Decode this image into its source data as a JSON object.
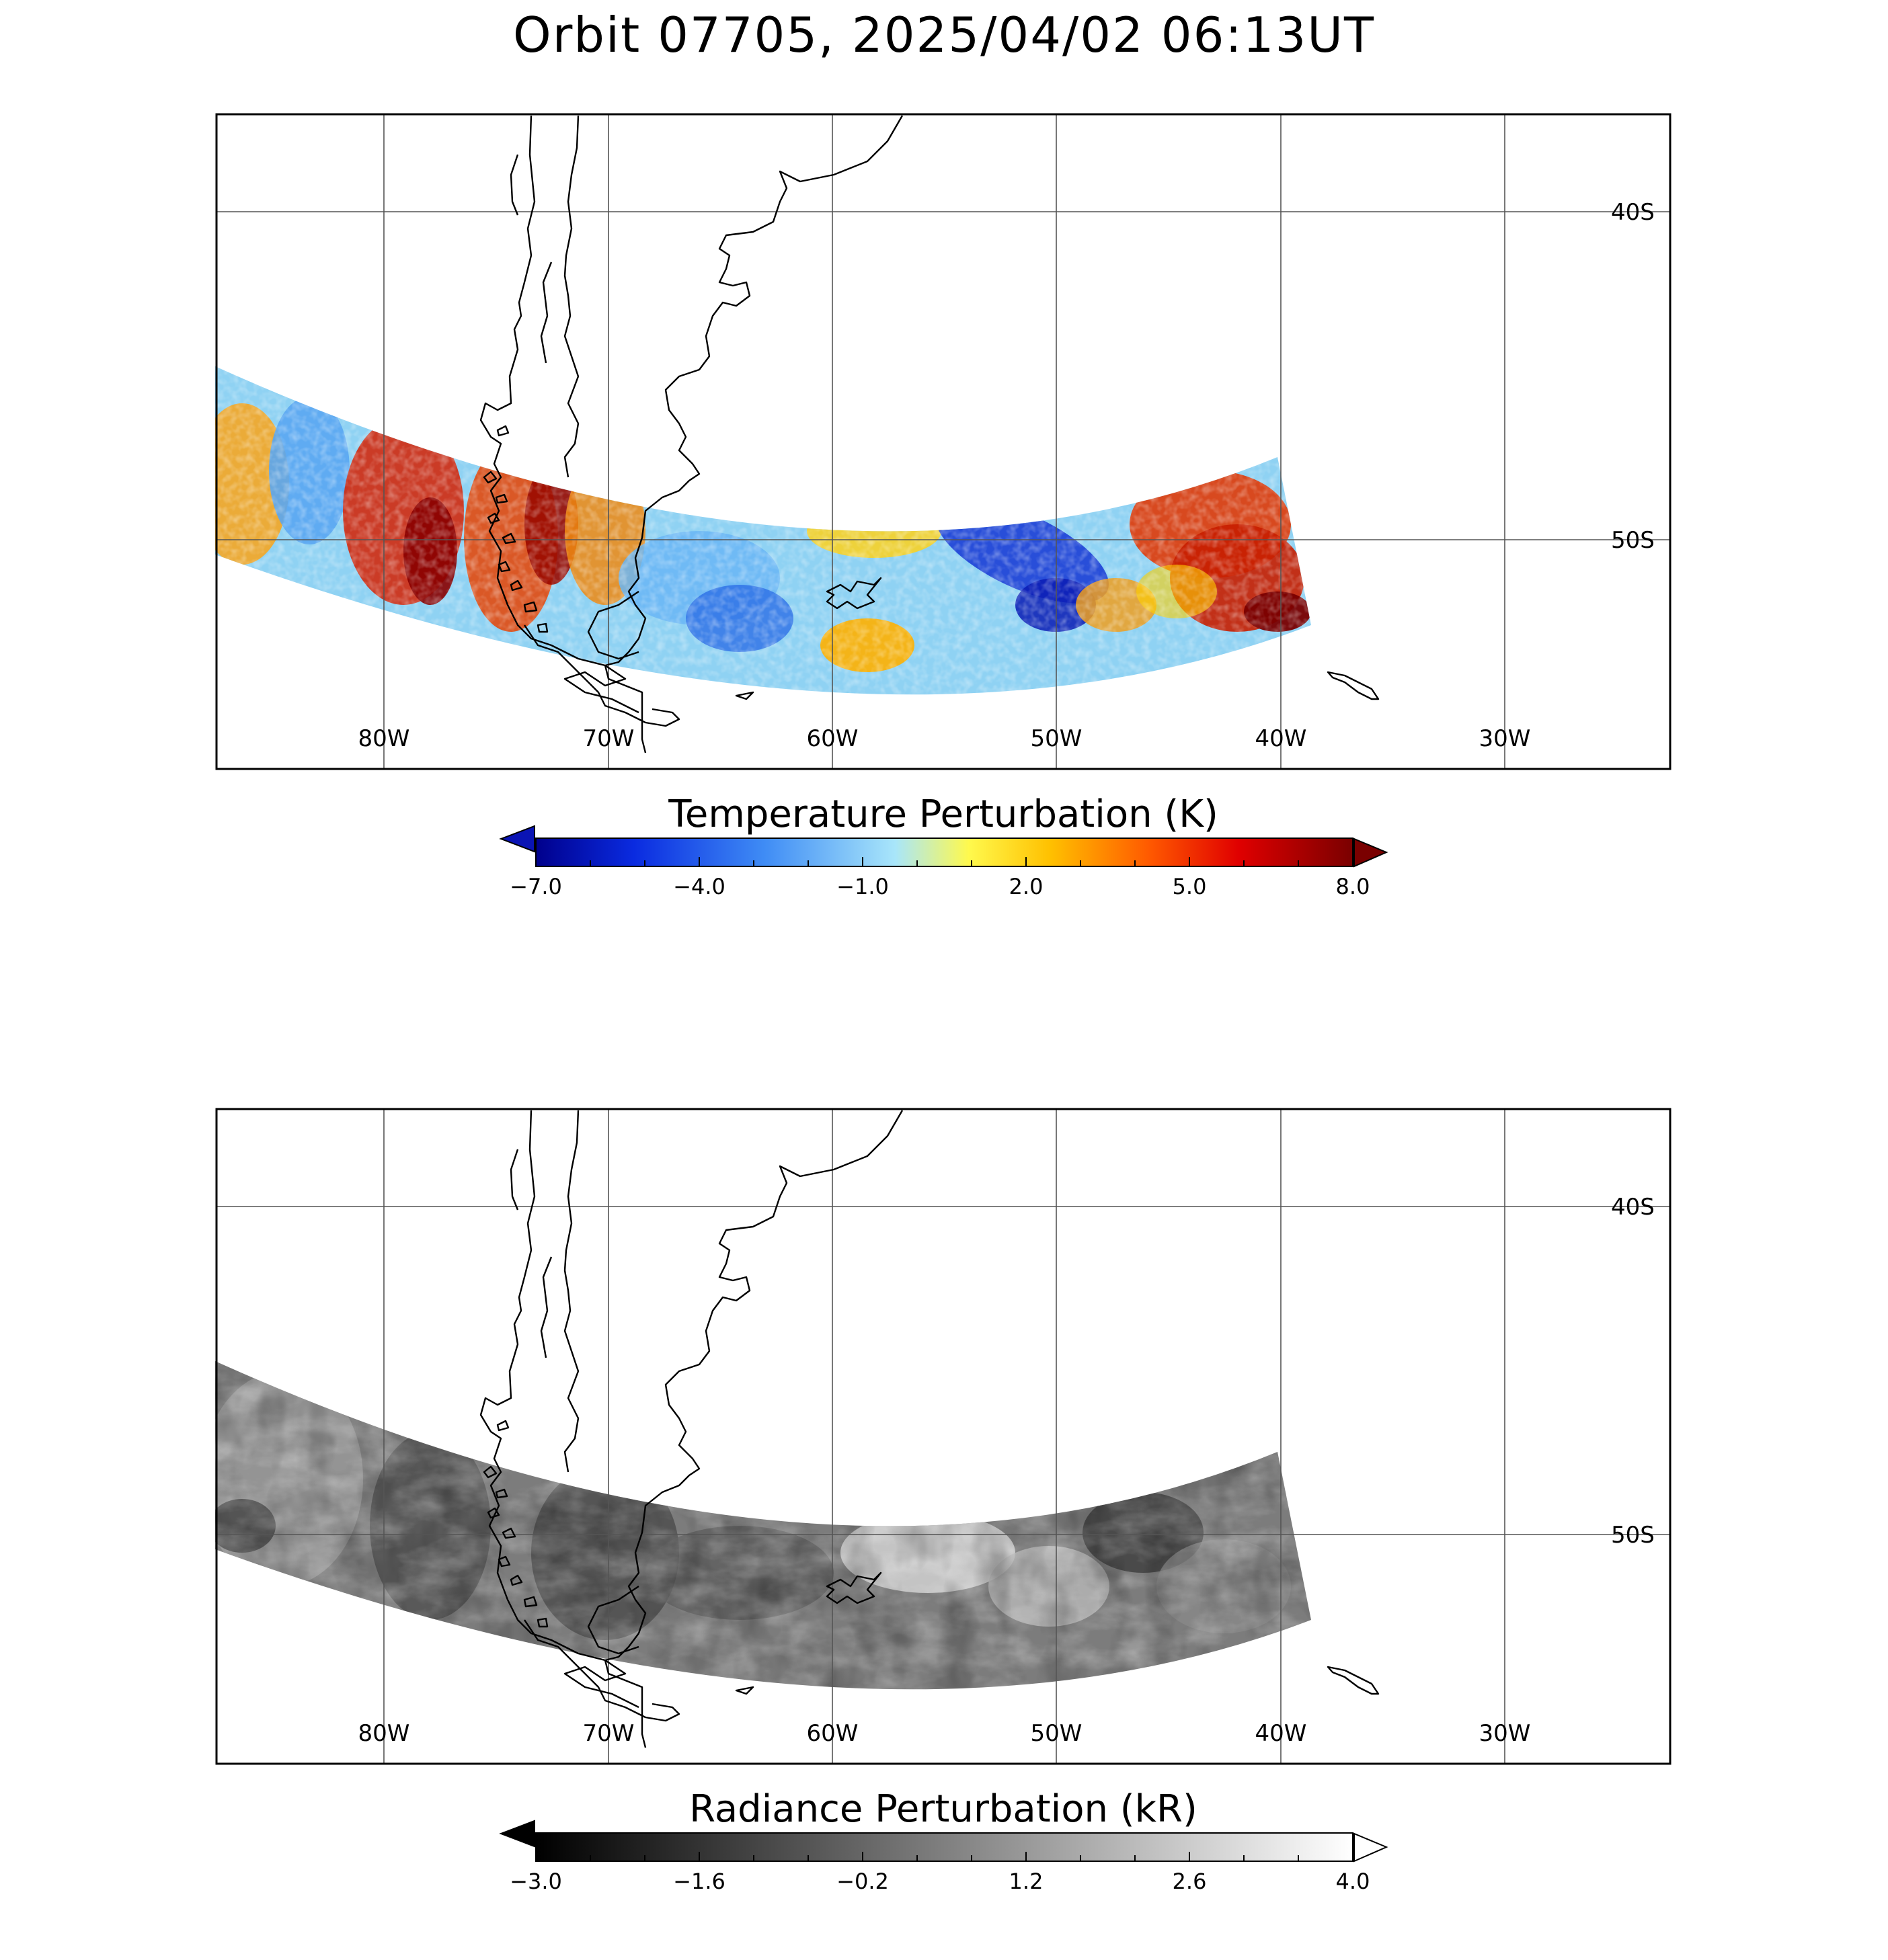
{
  "title": "Orbit 07705, 2025/04/02 06:13UT",
  "map": {
    "projection": "equirectangular-like",
    "lon_range": [
      -87.5,
      -22.5
    ],
    "lat_range": [
      -35.5,
      -59.5
    ],
    "lon_ticks": [
      {
        "value": -80,
        "label": "80W"
      },
      {
        "value": -70,
        "label": "70W"
      },
      {
        "value": -60,
        "label": "60W"
      },
      {
        "value": -50,
        "label": "50W"
      },
      {
        "value": -40,
        "label": "40W"
      },
      {
        "value": -30,
        "label": "30W"
      }
    ],
    "lat_ticks": [
      {
        "value": -40,
        "label": "40S"
      },
      {
        "value": -50,
        "label": "50S"
      }
    ],
    "gridlines": true
  },
  "panels": [
    {
      "id": "temperature",
      "field": "Temperature Perturbation",
      "colorbar": {
        "title": "Temperature Perturbation (K)",
        "min": -7.0,
        "max": 8.0,
        "tick_labels": [
          "−7.0",
          "−4.0",
          "−1.0",
          "2.0",
          "5.0",
          "8.0"
        ],
        "colormap": [
          "#00008c",
          "#0a2be0",
          "#3f8cf5",
          "#a9e6fa",
          "#fff94d",
          "#ffc000",
          "#ff5a00",
          "#e00000",
          "#7a0000"
        ],
        "low_extend_color": "#0a14b4",
        "high_extend_color": "#7a0000"
      }
    },
    {
      "id": "radiance",
      "field": "Radiance Perturbation",
      "colorbar": {
        "title": "Radiance Perturbation (kR)",
        "min": -3.0,
        "max": 4.0,
        "tick_labels": [
          "−3.0",
          "−1.6",
          "−0.2",
          "1.2",
          "2.6",
          "4.0"
        ],
        "colormap": [
          "#000000",
          "#ffffff"
        ],
        "low_extend_color": "#000000",
        "high_extend_color": "#ffffff"
      }
    }
  ]
}
